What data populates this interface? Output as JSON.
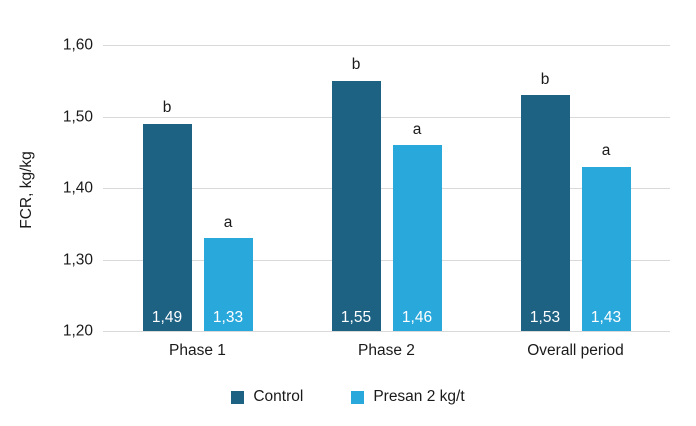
{
  "chart_data": {
    "type": "bar",
    "title": "",
    "categories": [
      "Phase 1",
      "Phase 2",
      "Overall period"
    ],
    "series": [
      {
        "name": "Control",
        "color": "#1d6183",
        "values": [
          1.49,
          1.55,
          1.53
        ],
        "value_labels": [
          "1,49",
          "1,55",
          "1,53"
        ],
        "significance": [
          "b",
          "b",
          "b"
        ]
      },
      {
        "name": "Presan 2 kg/t",
        "color": "#29a8dc",
        "values": [
          1.33,
          1.46,
          1.43
        ],
        "value_labels": [
          "1,33",
          "1,46",
          "1,43"
        ],
        "significance": [
          "a",
          "a",
          "a"
        ]
      }
    ],
    "xlabel": "",
    "ylabel": "FCR, kg/kg",
    "ylim": [
      1.2,
      1.6
    ],
    "yticks": [
      {
        "value": 1.6,
        "label": "1,60"
      },
      {
        "value": 1.5,
        "label": "1,50"
      },
      {
        "value": 1.4,
        "label": "1,40"
      },
      {
        "value": 1.3,
        "label": "1,30"
      },
      {
        "value": 1.2,
        "label": "1,20"
      }
    ],
    "grid": true,
    "gridline_color": "#d9d9d9",
    "text_color": "#1a1a1a",
    "value_label_color": "#ffffff",
    "legend_position": "bottom"
  }
}
